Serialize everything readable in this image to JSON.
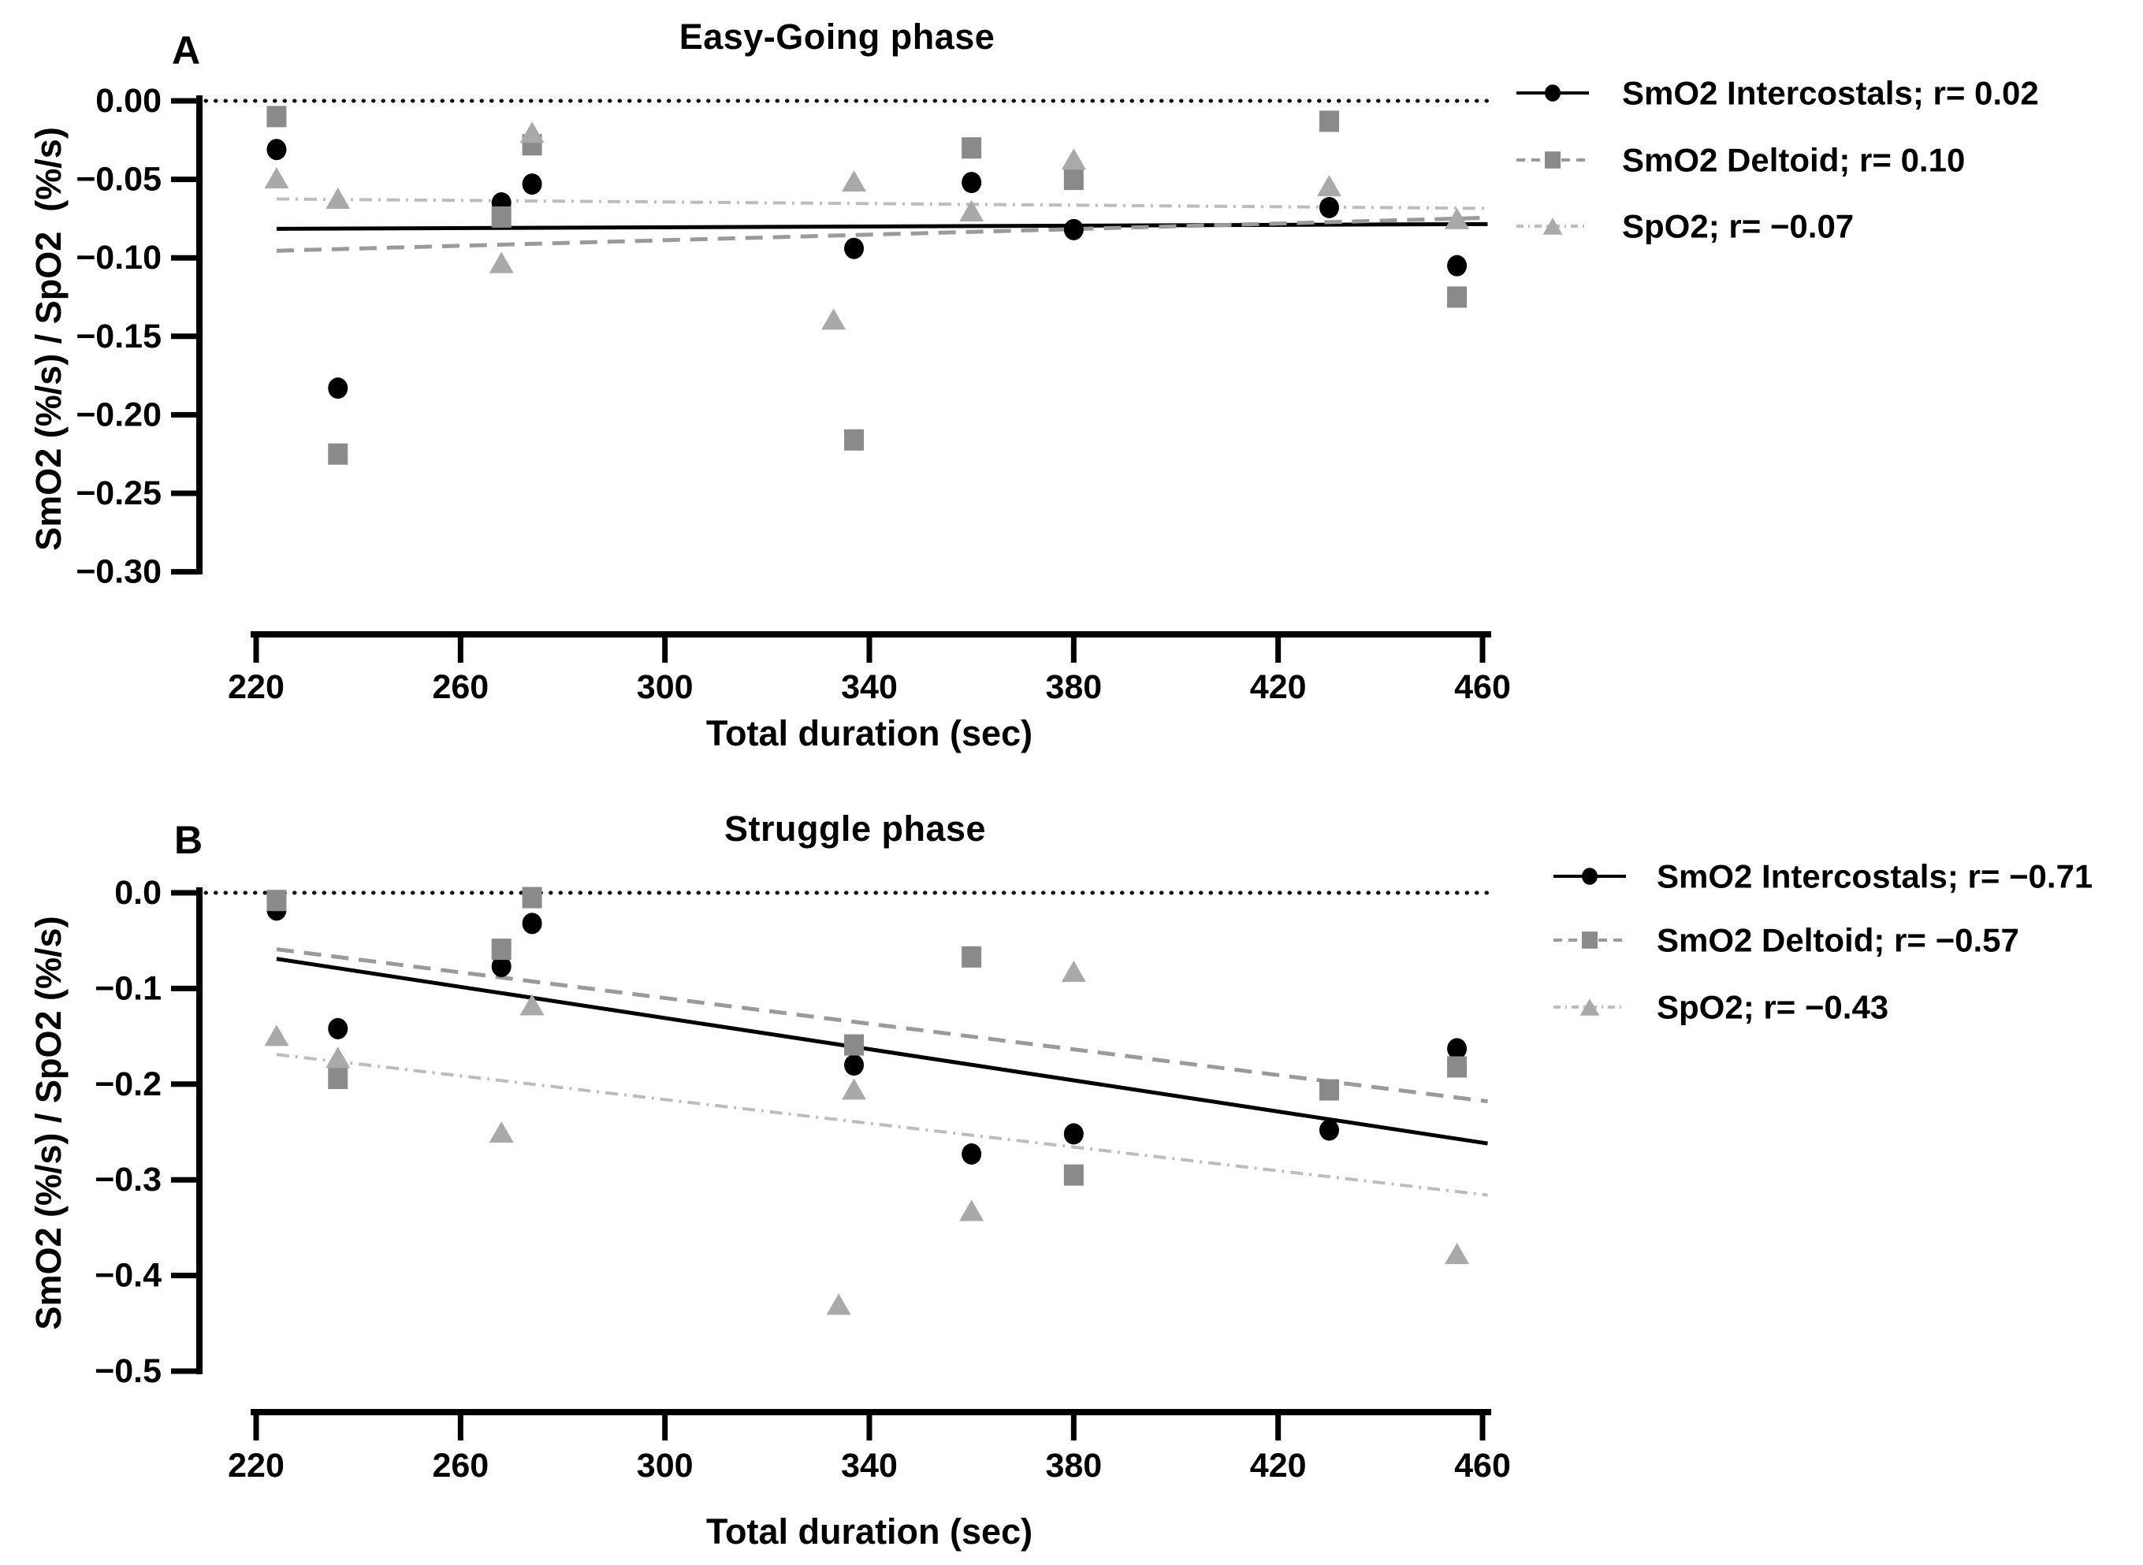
{
  "figure": {
    "background": "#ffffff",
    "accent_black": "#000000",
    "gray_square": "#8a8a8a",
    "gray_triangle": "#a9a9a9"
  },
  "chart_data": [
    {
      "type": "scatter",
      "panel_label": "A",
      "title": "Easy-Going phase",
      "xlabel": "Total duration (sec)",
      "ylabel": "SmO2 (%/s) / SpO2  (%/s)",
      "xlim": [
        220,
        460
      ],
      "ylim": [
        -0.3,
        0.0
      ],
      "x_ticks": [
        220,
        260,
        300,
        340,
        380,
        420,
        460
      ],
      "y_ticks": [
        {
          "v": 0.0,
          "label": "0.00"
        },
        {
          "v": -0.05,
          "label": "−0.05"
        },
        {
          "v": -0.1,
          "label": "−0.10"
        },
        {
          "v": -0.15,
          "label": "−0.15"
        },
        {
          "v": -0.2,
          "label": "−0.20"
        },
        {
          "v": -0.25,
          "label": "−0.25"
        },
        {
          "v": -0.3,
          "label": "−0.30"
        }
      ],
      "grid": false,
      "zero_line_dotted": true,
      "legend_position": "right",
      "series": [
        {
          "name": "smo2-intercostals",
          "legend_label": "SmO2 Intercostals; r= 0.02",
          "r": 0.02,
          "marker": "circle",
          "marker_color": "#000000",
          "line_style": "solid",
          "line_color": "#000000",
          "points": [
            [
              224,
              -0.031
            ],
            [
              236,
              -0.183
            ],
            [
              268,
              -0.065
            ],
            [
              274,
              -0.053
            ],
            [
              337,
              -0.094
            ],
            [
              360,
              -0.052
            ],
            [
              380,
              -0.082
            ],
            [
              430,
              -0.068
            ],
            [
              455,
              -0.105
            ]
          ],
          "trend": [
            [
              224,
              -0.0815
            ],
            [
              461,
              -0.0785
            ]
          ]
        },
        {
          "name": "smo2-deltoid",
          "legend_label": "SmO2 Deltoid; r= 0.10",
          "r": 0.1,
          "marker": "square",
          "marker_color": "#8a8a8a",
          "line_style": "dashed",
          "line_color": "#9a9a9a",
          "points": [
            [
              224,
              -0.01
            ],
            [
              236,
              -0.225
            ],
            [
              268,
              -0.074
            ],
            [
              274,
              -0.028
            ],
            [
              337,
              -0.216
            ],
            [
              360,
              -0.03
            ],
            [
              380,
              -0.05
            ],
            [
              430,
              -0.013
            ],
            [
              455,
              -0.125
            ]
          ],
          "trend": [
            [
              224,
              -0.0955
            ],
            [
              461,
              -0.0745
            ]
          ]
        },
        {
          "name": "spo2",
          "legend_label": "SpO2;  r= −0.07",
          "r": -0.07,
          "marker": "triangle",
          "marker_color": "#a9a9a9",
          "line_style": "dashdot",
          "line_color": "#bcbcbc",
          "points": [
            [
              224,
              -0.049
            ],
            [
              236,
              -0.062
            ],
            [
              268,
              -0.103
            ],
            [
              274,
              -0.02
            ],
            [
              333,
              -0.139
            ],
            [
              337,
              -0.051
            ],
            [
              360,
              -0.07
            ],
            [
              380,
              -0.037
            ],
            [
              430,
              -0.054
            ],
            [
              455,
              -0.075
            ]
          ],
          "trend": [
            [
              224,
              -0.0625
            ],
            [
              461,
              -0.0685
            ]
          ]
        }
      ]
    },
    {
      "type": "scatter",
      "panel_label": "B",
      "title": "Struggle phase",
      "xlabel": "Total duration (sec)",
      "ylabel": "SmO2 (%/s) / SpO2 (%/s)",
      "xlim": [
        220,
        460
      ],
      "ylim": [
        -0.5,
        0.0
      ],
      "x_ticks": [
        220,
        260,
        300,
        340,
        380,
        420,
        460
      ],
      "y_ticks": [
        {
          "v": 0.0,
          "label": "0.0"
        },
        {
          "v": -0.1,
          "label": "−0.1"
        },
        {
          "v": -0.2,
          "label": "−0.2"
        },
        {
          "v": -0.3,
          "label": "−0.3"
        },
        {
          "v": -0.4,
          "label": "−0.4"
        },
        {
          "v": -0.5,
          "label": "−0.5"
        }
      ],
      "grid": false,
      "zero_line_dotted": true,
      "legend_position": "right",
      "series": [
        {
          "name": "smo2-intercostals",
          "legend_label": "SmO2 Intercostals; r= −0.71",
          "r": -0.71,
          "marker": "circle",
          "marker_color": "#000000",
          "line_style": "solid",
          "line_color": "#000000",
          "points": [
            [
              224,
              -0.018
            ],
            [
              236,
              -0.142
            ],
            [
              268,
              -0.077
            ],
            [
              274,
              -0.032
            ],
            [
              337,
              -0.18
            ],
            [
              360,
              -0.273
            ],
            [
              380,
              -0.252
            ],
            [
              430,
              -0.248
            ],
            [
              455,
              -0.163
            ]
          ],
          "trend": [
            [
              224,
              -0.069
            ],
            [
              461,
              -0.262
            ]
          ]
        },
        {
          "name": "smo2-deltoid",
          "legend_label": "SmO2 Deltoid;  r= −0.57",
          "r": -0.57,
          "marker": "square",
          "marker_color": "#8a8a8a",
          "line_style": "dashed",
          "line_color": "#9a9a9a",
          "points": [
            [
              224,
              -0.008
            ],
            [
              236,
              -0.194
            ],
            [
              268,
              -0.059
            ],
            [
              274,
              -0.005
            ],
            [
              337,
              -0.159
            ],
            [
              360,
              -0.067
            ],
            [
              380,
              -0.295
            ],
            [
              430,
              -0.206
            ],
            [
              455,
              -0.182
            ]
          ],
          "trend": [
            [
              224,
              -0.059
            ],
            [
              461,
              -0.218
            ]
          ]
        },
        {
          "name": "spo2",
          "legend_label": "SpO2; r= −0.43",
          "r": -0.43,
          "marker": "triangle",
          "marker_color": "#a9a9a9",
          "line_style": "dashdot",
          "line_color": "#bcbcbc",
          "points": [
            [
              224,
              -0.149
            ],
            [
              236,
              -0.172
            ],
            [
              268,
              -0.25
            ],
            [
              274,
              -0.117
            ],
            [
              334,
              -0.43
            ],
            [
              337,
              -0.205
            ],
            [
              360,
              -0.332
            ],
            [
              380,
              -0.082
            ],
            [
              455,
              -0.377
            ]
          ],
          "trend": [
            [
              224,
              -0.169
            ],
            [
              461,
              -0.316
            ]
          ]
        }
      ]
    }
  ]
}
